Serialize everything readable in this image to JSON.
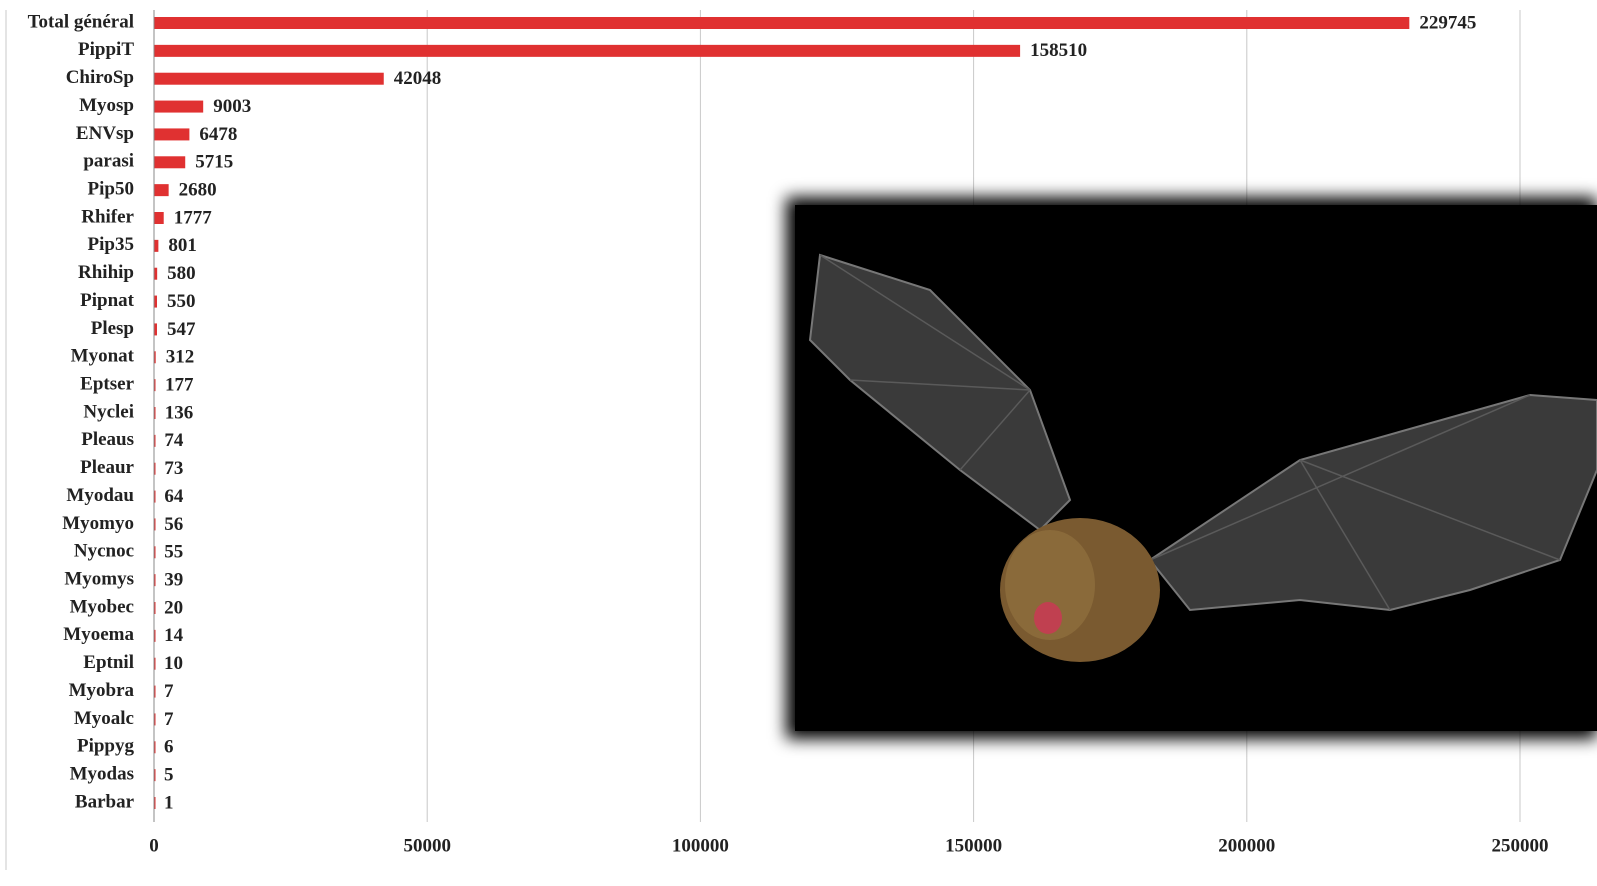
{
  "chart_data": {
    "type": "bar",
    "orientation": "horizontal",
    "categories": [
      "Total général",
      "PippiT",
      "ChiroSp",
      "Myosp",
      "ENVsp",
      "parasi",
      "Pip50",
      "Rhifer",
      "Pip35",
      "Rhihip",
      "Pipnat",
      "Plesp",
      "Myonat",
      "Eptser",
      "Nyclei",
      "Pleaus",
      "Pleaur",
      "Myodau",
      "Myomyo",
      "Nycnoc",
      "Myomys",
      "Myobec",
      "Myoema",
      "Eptnil",
      "Myobra",
      "Myoalc",
      "Pippyg",
      "Myodas",
      "Barbar"
    ],
    "values": [
      229745,
      158510,
      42048,
      9003,
      6478,
      5715,
      2680,
      1777,
      801,
      580,
      550,
      547,
      312,
      177,
      136,
      74,
      73,
      64,
      56,
      55,
      39,
      20,
      14,
      10,
      7,
      7,
      6,
      5,
      1
    ],
    "color": "#e03131",
    "xlim": [
      0,
      250000
    ],
    "xticks": [
      0,
      50000,
      100000,
      150000,
      200000,
      250000
    ],
    "grid": true
  }
}
